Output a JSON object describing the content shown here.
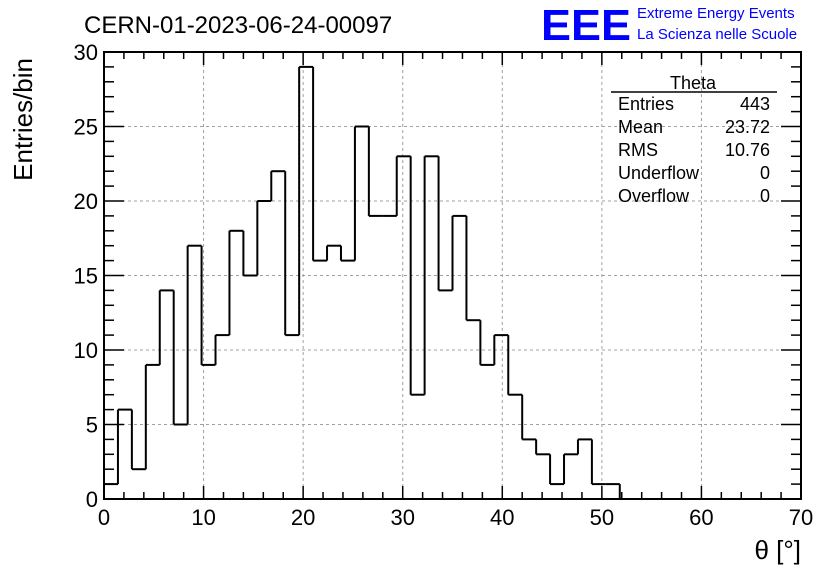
{
  "header": {
    "run_title": "CERN-01-2023-06-24-00097",
    "logo_text": "EEE",
    "logo_line1": "Extreme Energy Events",
    "logo_line2": "La Scienza nelle Scuole",
    "logo_color": "#0000ff"
  },
  "stats_box": {
    "title": "Theta",
    "rows": [
      {
        "label": "Entries",
        "value": "443"
      },
      {
        "label": "Mean",
        "value": "23.72"
      },
      {
        "label": "RMS",
        "value": "10.76"
      },
      {
        "label": "Underflow",
        "value": "0"
      },
      {
        "label": "Overflow",
        "value": "0"
      }
    ]
  },
  "chart_data": {
    "type": "bar",
    "histogram": true,
    "xlabel": "θ [°]",
    "ylabel": "Entries/bin",
    "xlim": [
      0,
      70
    ],
    "ylim": [
      0,
      30
    ],
    "bin_width": 1.4,
    "bin_edges_start": 0,
    "values": [
      1,
      6,
      2,
      9,
      14,
      5,
      17,
      9,
      11,
      18,
      15,
      20,
      22,
      11,
      29,
      16,
      17,
      16,
      25,
      19,
      19,
      23,
      7,
      23,
      14,
      19,
      12,
      9,
      11,
      7,
      4,
      3,
      1,
      3,
      4,
      1,
      1,
      0,
      0,
      0,
      0,
      0,
      0,
      0,
      0,
      0,
      0,
      0,
      0,
      0
    ],
    "x_ticks": [
      0,
      10,
      20,
      30,
      40,
      50,
      60,
      70
    ],
    "y_ticks": [
      0,
      5,
      10,
      15,
      20,
      25,
      30
    ],
    "grid": true,
    "line_color": "#000000",
    "grid_color": "#a0a0a0"
  }
}
